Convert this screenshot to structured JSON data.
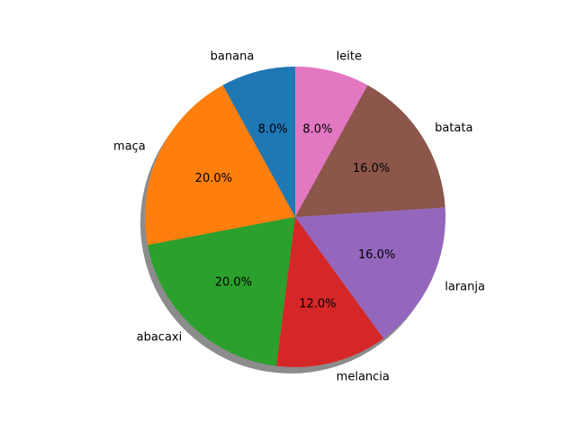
{
  "chart_data": {
    "type": "pie",
    "categories": [
      "banana",
      "maça",
      "abacaxi",
      "melancia",
      "laranja",
      "batata",
      "leite"
    ],
    "values": [
      8.0,
      20.0,
      20.0,
      12.0,
      16.0,
      16.0,
      8.0
    ],
    "value_labels": [
      "8.0%",
      "20.0%",
      "20.0%",
      "12.0%",
      "16.0%",
      "16.0%",
      "8.0%"
    ],
    "colors": [
      "#1f77b4",
      "#ff7f0e",
      "#2ca02c",
      "#d62728",
      "#9467bd",
      "#8c564b",
      "#e377c2"
    ],
    "start_angle_deg": 90,
    "direction": "counterclockwise",
    "shadow": true
  }
}
